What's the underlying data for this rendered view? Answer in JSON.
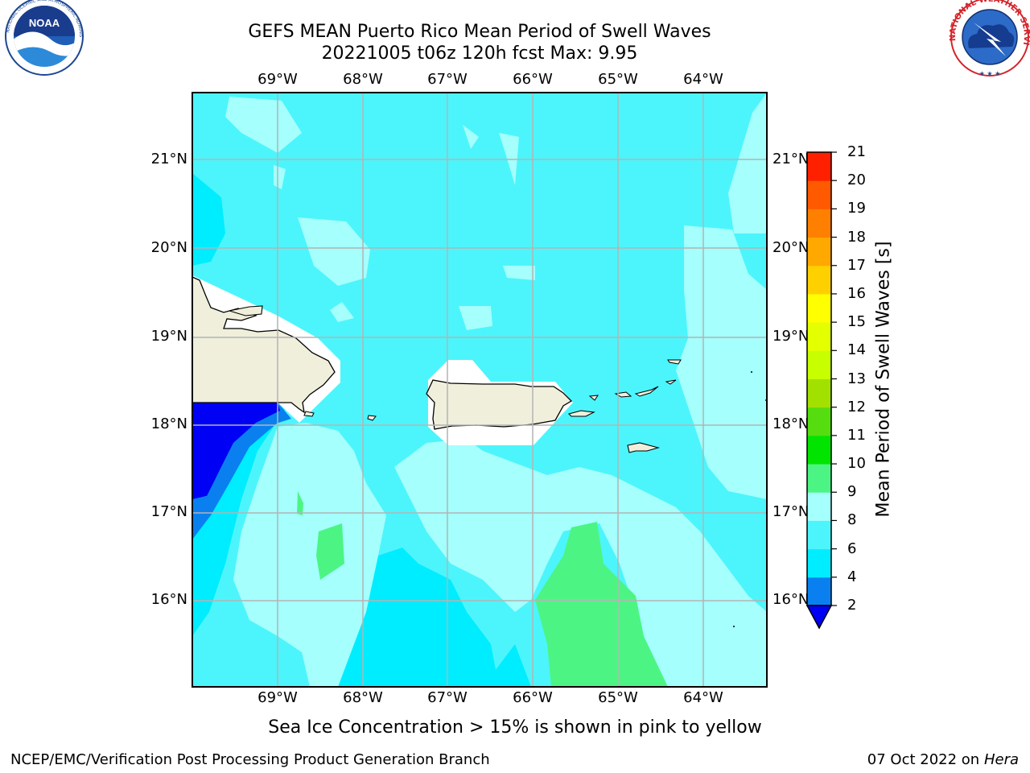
{
  "header": {
    "title_line1": "GEFS MEAN Puerto Rico Mean Period of Swell Waves",
    "title_line2": "20221005 t06z 120h fcst   Max: 9.95"
  },
  "logos": {
    "left": {
      "name": "noaa-logo",
      "text": "NOAA",
      "ring_text": "NATIONAL OCEANIC AND ATMOSPHERIC ADMINISTRATION · U.S. DEPARTMENT OF COMMERCE"
    },
    "right": {
      "name": "nws-logo",
      "ring_text": "NATIONAL WEATHER SERVICE"
    }
  },
  "map": {
    "lon_labels": [
      "69°W",
      "68°W",
      "67°W",
      "66°W",
      "65°W",
      "64°W"
    ],
    "lat_labels": [
      "21°N",
      "20°N",
      "19°N",
      "18°N",
      "17°N",
      "16°N"
    ],
    "extent": {
      "lon_min": -70.0,
      "lon_max": -63.25,
      "lat_min": 15.0,
      "lat_max": 21.75
    },
    "colors": {
      "land": "#efefdc",
      "no_data": "#ffffff",
      "grid": "#b4b4b4"
    }
  },
  "colorbar": {
    "label": "Mean Period of Swell Waves [s]",
    "ticks": [
      "2",
      "4",
      "6",
      "8",
      "9",
      "10",
      "11",
      "12",
      "13",
      "14",
      "15",
      "16",
      "17",
      "18",
      "19",
      "20",
      "21"
    ],
    "colors": [
      "#0000f5",
      "#0a80f0",
      "#00ecff",
      "#4cf5fb",
      "#a4fffd",
      "#4cf583",
      "#00e400",
      "#55dd10",
      "#a2e000",
      "#c8ff00",
      "#e3ff00",
      "#ffff00",
      "#ffd000",
      "#ffa800",
      "#ff8000",
      "#ff5a00",
      "#ff2000",
      "#ff0000"
    ],
    "extend": "min"
  },
  "notes": {
    "sea_ice": "Sea Ice Concentration > 15% is shown in pink to yellow",
    "producer": "NCEP/EMC/Verification Post Processing Product Generation Branch",
    "date": "07 Oct 2022 on ",
    "system": "Hera"
  }
}
